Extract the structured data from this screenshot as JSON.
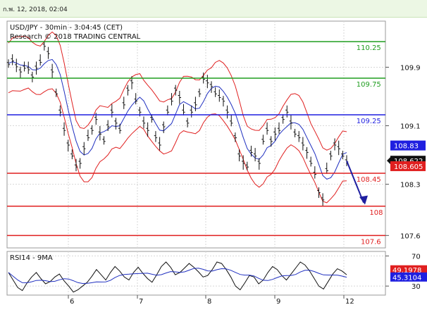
{
  "header": {
    "timestamp": "ก.พ. 12, 2018, 02:04"
  },
  "chart_data": [
    {
      "type": "candlestick",
      "title": "USD/JPY - 30min - 3:04:45 (CET)",
      "subtitle": "Research © 2018 TRADING CENTRAL",
      "x_ticks": [
        "6",
        "7",
        "8",
        "9",
        "12"
      ],
      "y_ticks": [
        109.9,
        109.1,
        108.3,
        107.6
      ],
      "y_range": [
        107.43,
        110.53
      ],
      "levels": [
        {
          "label": "110.25",
          "value": 110.25,
          "color": "#1f9d1f"
        },
        {
          "label": "109.75",
          "value": 109.75,
          "color": "#1f9d1f"
        },
        {
          "label": "109.25",
          "value": 109.25,
          "color": "#1f1fe0"
        },
        {
          "label": "108.45",
          "value": 108.45,
          "color": "#e01f1f"
        },
        {
          "label": "108",
          "value": 108.0,
          "color": "#e01f1f"
        },
        {
          "label": "107.6",
          "value": 107.6,
          "color": "#e01f1f"
        }
      ],
      "price_tags": [
        {
          "label": "108.83",
          "value": 108.83,
          "color": "#1f1fe0"
        },
        {
          "label": "108.622",
          "value": 108.622,
          "color": "#111111"
        },
        {
          "label": "108.605",
          "value": 108.605,
          "color": "#e01f1f"
        }
      ],
      "close_path": [
        109.95,
        110.0,
        109.92,
        109.85,
        109.9,
        109.88,
        109.78,
        109.9,
        109.98,
        110.2,
        110.1,
        109.85,
        109.55,
        109.3,
        109.05,
        108.85,
        108.7,
        108.55,
        108.6,
        108.8,
        108.95,
        109.05,
        109.2,
        109.0,
        108.9,
        109.1,
        109.3,
        109.15,
        109.05,
        109.4,
        109.6,
        109.7,
        109.45,
        109.3,
        109.15,
        109.05,
        109.2,
        108.95,
        108.85,
        109.1,
        109.3,
        109.45,
        109.6,
        109.5,
        109.3,
        109.15,
        109.3,
        109.4,
        109.55,
        109.75,
        109.7,
        109.65,
        109.55,
        109.5,
        109.45,
        109.3,
        109.15,
        108.95,
        108.7,
        108.6,
        108.55,
        108.75,
        108.7,
        108.6,
        108.9,
        109.05,
        108.9,
        109.0,
        109.05,
        109.2,
        109.3,
        109.15,
        109.0,
        108.95,
        108.85,
        108.75,
        108.6,
        108.45,
        108.2,
        108.1,
        108.5,
        108.7,
        108.85,
        108.8,
        108.7,
        108.62
      ],
      "arrow": {
        "from": 108.62,
        "to": 108.05,
        "color": "#1f1fa0"
      }
    },
    {
      "type": "line",
      "title": "RSI14 - 9MA",
      "y_ticks": [
        70,
        30
      ],
      "y_range": [
        18,
        76
      ],
      "tags": [
        {
          "label": "49.1978",
          "value": 49.1978,
          "color": "#e01f1f"
        },
        {
          "label": "45.3104",
          "value": 45.3104,
          "color": "#1f1fe0"
        }
      ],
      "rsi_path": [
        48,
        38,
        28,
        24,
        34,
        42,
        48,
        40,
        33,
        36,
        42,
        46,
        37,
        30,
        22,
        25,
        30,
        35,
        43,
        52,
        45,
        38,
        48,
        56,
        50,
        42,
        38,
        48,
        55,
        47,
        40,
        35,
        45,
        56,
        62,
        55,
        45,
        48,
        54,
        60,
        55,
        49,
        42,
        44,
        52,
        62,
        60,
        52,
        42,
        30,
        25,
        34,
        44,
        42,
        33,
        38,
        48,
        56,
        52,
        44,
        38,
        46,
        54,
        62,
        58,
        50,
        40,
        30,
        26,
        36,
        46,
        53,
        50,
        45
      ]
    }
  ]
}
